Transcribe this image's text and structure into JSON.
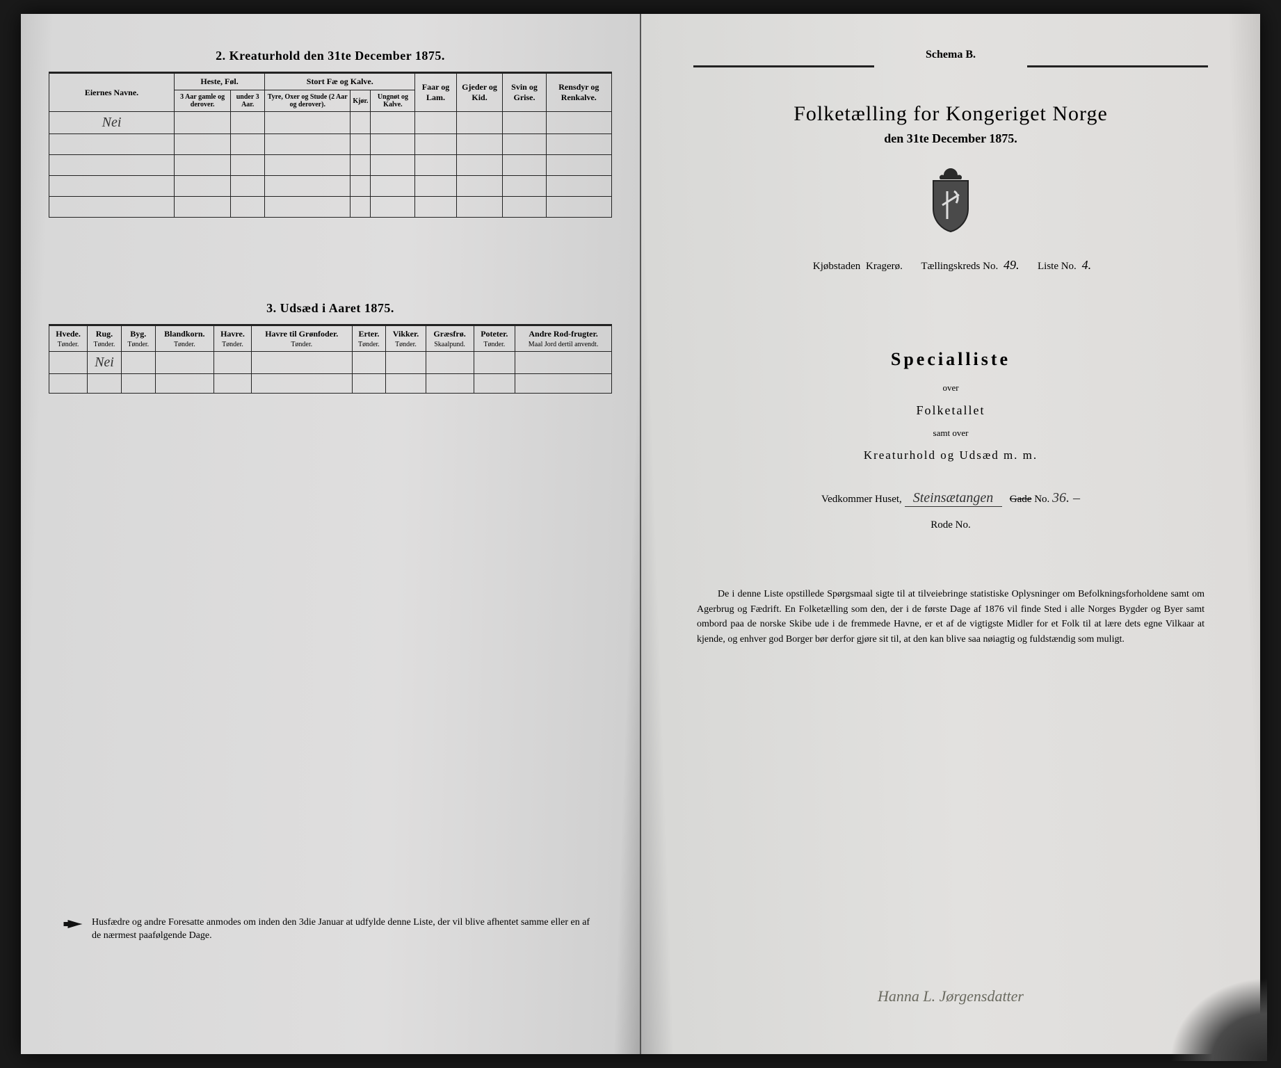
{
  "left": {
    "section2": {
      "title": "2.  Kreaturhold den 31te December 1875.",
      "owner_header": "Eiernes Navne.",
      "groups": {
        "heste": "Heste, Føl.",
        "stort": "Stort Fæ og Kalve.",
        "faar": "Faar og Lam.",
        "gjeder": "Gjeder og Kid.",
        "svin": "Svin og Grise.",
        "rensdyr": "Rensdyr og Renkalve."
      },
      "sub": {
        "heste1": "3 Aar gamle og derover.",
        "heste2": "under 3 Aar.",
        "stort1": "Tyre, Oxer og Stude (2 Aar og derover).",
        "stort2": "Kjør.",
        "stort3": "Ungnøt og Kalve."
      },
      "row1_owner": "Nei"
    },
    "section3": {
      "title": "3.  Udsæd i Aaret 1875.",
      "cols": [
        {
          "h": "Hvede.",
          "u": "Tønder."
        },
        {
          "h": "Rug.",
          "u": "Tønder."
        },
        {
          "h": "Byg.",
          "u": "Tønder."
        },
        {
          "h": "Blandkorn.",
          "u": "Tønder."
        },
        {
          "h": "Havre.",
          "u": "Tønder."
        },
        {
          "h": "Havre til Grønfoder.",
          "u": "Tønder."
        },
        {
          "h": "Erter.",
          "u": "Tønder."
        },
        {
          "h": "Vikker.",
          "u": "Tønder."
        },
        {
          "h": "Græsfrø.",
          "u": "Skaalpund."
        },
        {
          "h": "Poteter.",
          "u": "Tønder."
        },
        {
          "h": "Andre Rod-frugter.",
          "u": "Maal Jord dertil anvendt."
        }
      ],
      "row1_val": "Nei"
    },
    "footnote": "Husfædre og andre Foresatte anmodes om inden den 3die Januar at udfylde denne Liste, der vil blive afhentet samme eller en af de nærmest paafølgende Dage."
  },
  "right": {
    "schema": "Schema B.",
    "title": "Folketælling for Kongeriget Norge",
    "subtitle": "den 31te December 1875.",
    "meta": {
      "kjobstad_lbl": "Kjøbstaden",
      "kjobstad_val": "Kragerø.",
      "kreds_lbl": "Tællingskreds No.",
      "kreds_val": "49.",
      "liste_lbl": "Liste No.",
      "liste_val": "4."
    },
    "spec": {
      "title": "Specialliste",
      "over1": "over",
      "folketallet": "Folketallet",
      "samt": "samt over",
      "kreat": "Kreaturhold og Udsæd m. m."
    },
    "vedkommer": {
      "lbl": "Vedkommer Huset,",
      "place": "Steinsætangen",
      "gade": "Gade",
      "no_lbl": "No.",
      "no_val": "36. –"
    },
    "rode": "Rode No.",
    "paragraph": "De i denne Liste opstillede Spørgsmaal sigte til at tilveiebringe statistiske Oplysninger om Befolkningsforholdene samt om Agerbrug og Fædrift. En Folketælling som den, der i de første Dage af 1876 vil finde Sted i alle Norges Bygder og Byer samt ombord paa de norske Skibe ude i de fremmede Havne, er et af de vigtigste Midler for et Folk til at lære dets egne Vilkaar at kjende, og enhver god Borger bør derfor gjøre sit til, at den kan blive saa nøiagtig og fuldstændig som muligt.",
    "signature": "Hanna L. Jørgensdatter"
  },
  "colors": {
    "ink": "#1a1a1a",
    "paper_left": "#dedede",
    "paper_right": "#e0dfdc"
  }
}
